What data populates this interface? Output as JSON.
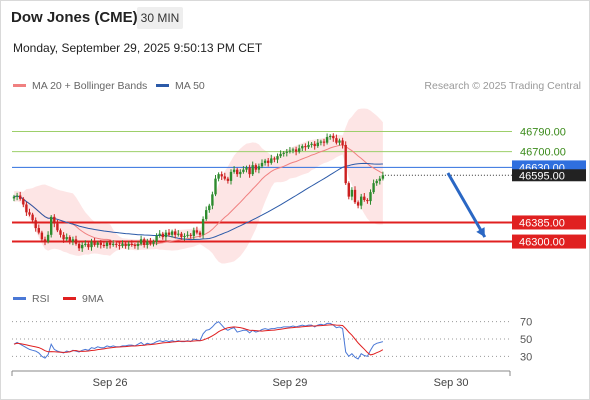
{
  "header": {
    "title": "Dow Jones (CME)",
    "timeframe": "30 MIN",
    "datetime": "Monday, September 29, 2025 9:50:13 PM CET",
    "credit": "Research © 2025 Trading Central"
  },
  "colors": {
    "up": "#2e8b2e",
    "down": "#cc1f1f",
    "ma20": "#f08080",
    "bb_fill": "#fde0e0",
    "ma50": "#2b5aa8",
    "resistance": "#9dcf6a",
    "support": "#e02020",
    "pivot": "#2f6fde",
    "rsi": "#4a78d6",
    "rsi_ma": "#e02020",
    "arrow": "#2a67c4"
  },
  "chart_data": [
    {
      "type": "candlestick",
      "legend": [
        {
          "label": "MA 20 + Bollinger Bands",
          "color": "#f08080"
        },
        {
          "label": "MA 50",
          "color": "#2b5aa8"
        }
      ],
      "ylim": [
        46120,
        46930
      ],
      "x_ticks": [
        {
          "label": "Sep 26",
          "index": 31
        },
        {
          "label": "Sep 29",
          "index": 89
        },
        {
          "label": "Sep 30",
          "index": 141
        }
      ],
      "levels": [
        {
          "value": 46790.0,
          "label": "46790.00",
          "kind": "resistance"
        },
        {
          "value": 46700.0,
          "label": "46700.00",
          "kind": "resistance"
        },
        {
          "value": 46630.0,
          "label": "46630.00",
          "kind": "pivot"
        },
        {
          "value": 46385.0,
          "label": "46385.00",
          "kind": "support"
        },
        {
          "value": 46300.0,
          "label": "46300.00",
          "kind": "support"
        }
      ],
      "last_price": {
        "value": 46595.0,
        "label": "46595.00"
      },
      "projection": {
        "from": [
          139,
          46605
        ],
        "to": [
          148,
          46320
        ]
      },
      "close": [
        46500,
        46505,
        46490,
        46465,
        46430,
        46420,
        46395,
        46360,
        46340,
        46310,
        46300,
        46330,
        46410,
        46380,
        46350,
        46330,
        46310,
        46320,
        46300,
        46310,
        46290,
        46270,
        46285,
        46290,
        46275,
        46300,
        46285,
        46295,
        46285,
        46280,
        46295,
        46285,
        46290,
        46285,
        46280,
        46290,
        46280,
        46290,
        46285,
        46280,
        46290,
        46310,
        46285,
        46300,
        46290,
        46300,
        46325,
        46335,
        46320,
        46340,
        46330,
        46345,
        46330,
        46335,
        46320,
        46325,
        46330,
        46325,
        46350,
        46340,
        46330,
        46400,
        46440,
        46460,
        46510,
        46580,
        46600,
        46590,
        46580,
        46570,
        46610,
        46620,
        46600,
        46610,
        46620,
        46630,
        46600,
        46640,
        46620,
        46635,
        46650,
        46660,
        46650,
        46670,
        46665,
        46680,
        46690,
        46695,
        46700,
        46705,
        46710,
        46700,
        46715,
        46725,
        46720,
        46730,
        46735,
        46725,
        46740,
        46745,
        46740,
        46765,
        46770,
        46760,
        46740,
        46750,
        46730,
        46560,
        46500,
        46530,
        46475,
        46460,
        46500,
        46485,
        46480,
        46520,
        46560,
        46570,
        46580,
        46595
      ],
      "rsi": {
        "ylim": [
          20,
          80
        ],
        "ticks": [
          70,
          50,
          30
        ],
        "legend": [
          {
            "label": "RSI",
            "color": "#4a78d6"
          },
          {
            "label": "9MA",
            "color": "#e02020"
          }
        ],
        "values": [
          44,
          46,
          44,
          42,
          40,
          38,
          37,
          36,
          34,
          30,
          28,
          32,
          44,
          38,
          36,
          35,
          34,
          36,
          35,
          37,
          36,
          35,
          37,
          38,
          37,
          40,
          39,
          41,
          40,
          40,
          42,
          41,
          42,
          41,
          41,
          42,
          42,
          43,
          43,
          42,
          44,
          46,
          43,
          45,
          44,
          45,
          47,
          48,
          47,
          48,
          47,
          48,
          47,
          48,
          47,
          47,
          48,
          47,
          50,
          49,
          48,
          56,
          60,
          61,
          64,
          68,
          70,
          66,
          62,
          60,
          62,
          63,
          58,
          59,
          60,
          60,
          57,
          60,
          58,
          59,
          61,
          62,
          61,
          62,
          62,
          63,
          63,
          64,
          64,
          64,
          65,
          64,
          65,
          66,
          65,
          66,
          66,
          64,
          66,
          67,
          66,
          68,
          68,
          66,
          63,
          64,
          62,
          35,
          30,
          33,
          29,
          27,
          33,
          31,
          30,
          37,
          43,
          45,
          46,
          47
        ]
      }
    }
  ]
}
